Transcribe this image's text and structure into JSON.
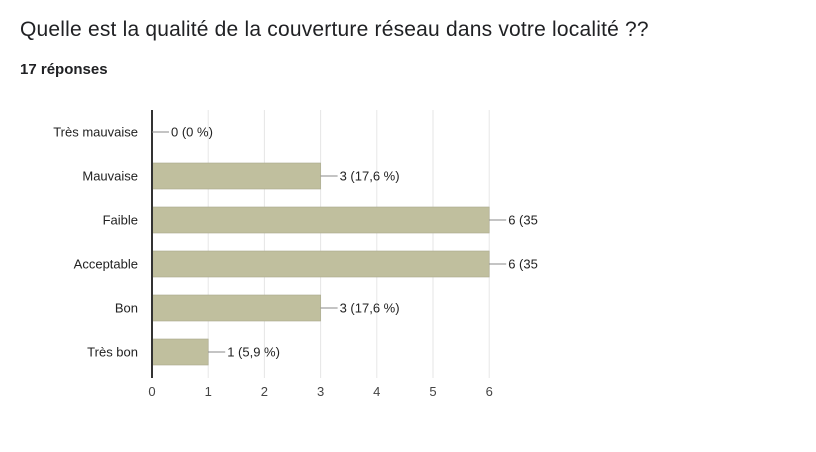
{
  "question": {
    "title": "Quelle est la qualité de la couverture réseau dans votre localité ??",
    "response_count": "17 réponses"
  },
  "colors": {
    "bar": "#c0bf9e",
    "bar_stroke": "#a8a78a",
    "axis": "#333333",
    "grid": "#e6e6e6",
    "leader": "#888888"
  },
  "chart_data": {
    "type": "bar",
    "orientation": "horizontal",
    "categories": [
      "Très mauvaise",
      "Mauvaise",
      "Faible",
      "Acceptable",
      "Bon",
      "Très bon"
    ],
    "values": [
      0,
      3,
      6,
      6,
      3,
      1
    ],
    "data_labels": [
      "0 (0 %)",
      "3 (17,6 %)",
      "6 (35",
      "6 (35",
      "3 (17,6 %)",
      "1 (5,9 %)"
    ],
    "x_ticks": [
      "0",
      "1",
      "2",
      "3",
      "4",
      "5",
      "6"
    ],
    "xlim": [
      0,
      6
    ],
    "grid": true,
    "legend": "none"
  }
}
